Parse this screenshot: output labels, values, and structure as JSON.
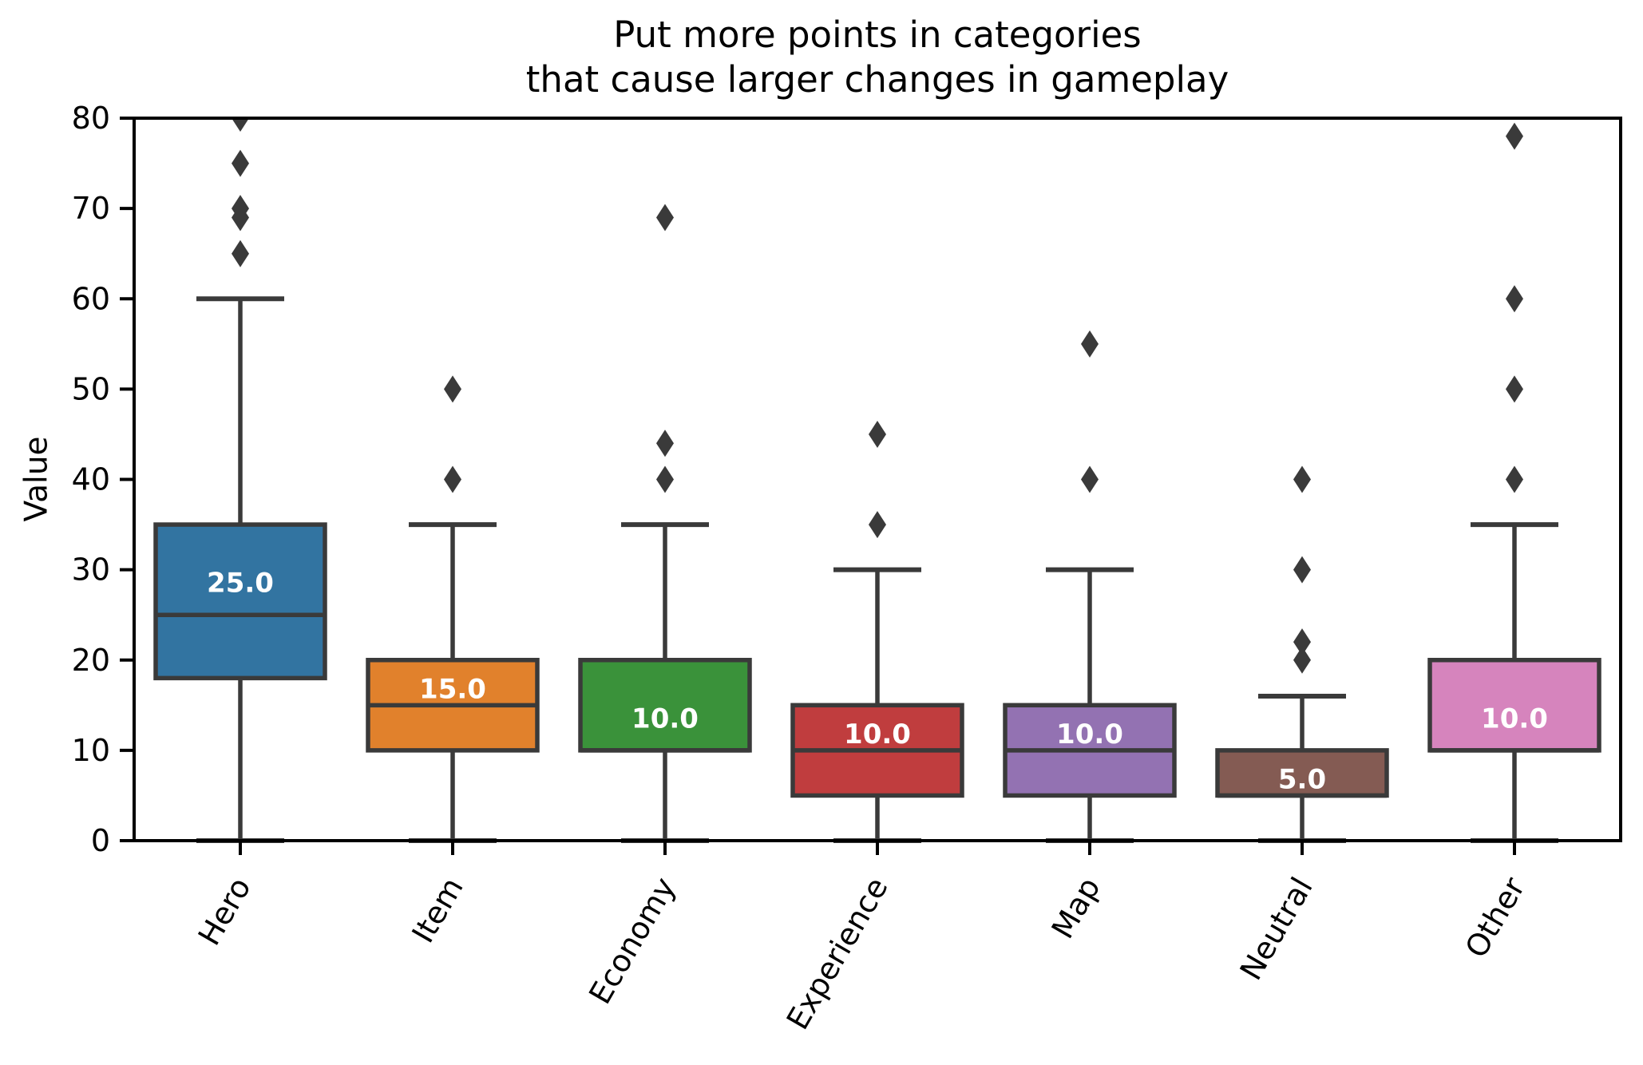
{
  "chart_data": {
    "type": "box",
    "title": "Put more points in categories\nthat cause larger changes in gameplay",
    "ylabel": "Value",
    "xlabel": "",
    "ylim": [
      0,
      80
    ],
    "yticks": [
      0,
      10,
      20,
      30,
      40,
      50,
      60,
      70,
      80
    ],
    "grid": false,
    "legend": "none",
    "x_tick_rotation_deg": 60,
    "categories": [
      "Hero",
      "Item",
      "Economy",
      "Experience",
      "Map",
      "Neutral",
      "Other"
    ],
    "series": [
      {
        "category": "Hero",
        "color": "#3274a1",
        "q1": 18,
        "median": 25,
        "q3": 35,
        "whisker_low": 0,
        "whisker_high": 60,
        "outliers": [
          65,
          69,
          70,
          75,
          80
        ],
        "median_label": "25.0"
      },
      {
        "category": "Item",
        "color": "#e1812c",
        "q1": 10,
        "median": 15,
        "q3": 20,
        "whisker_low": 0,
        "whisker_high": 35,
        "outliers": [
          40,
          50
        ],
        "median_label": "15.0"
      },
      {
        "category": "Economy",
        "color": "#3a923a",
        "q1": 10,
        "median": 10,
        "q3": 20,
        "whisker_low": 0,
        "whisker_high": 35,
        "outliers": [
          40,
          44,
          69
        ],
        "median_label": "10.0"
      },
      {
        "category": "Experience",
        "color": "#c03d3e",
        "q1": 5,
        "median": 10,
        "q3": 15,
        "whisker_low": 0,
        "whisker_high": 30,
        "outliers": [
          35,
          45
        ],
        "median_label": "10.0"
      },
      {
        "category": "Map",
        "color": "#9372b2",
        "q1": 5,
        "median": 10,
        "q3": 15,
        "whisker_low": 0,
        "whisker_high": 30,
        "outliers": [
          40,
          55
        ],
        "median_label": "10.0"
      },
      {
        "category": "Neutral",
        "color": "#845b53",
        "q1": 5,
        "median": 5,
        "q3": 10,
        "whisker_low": 0,
        "whisker_high": 16,
        "outliers": [
          20,
          22,
          30,
          40
        ],
        "median_label": "5.0"
      },
      {
        "category": "Other",
        "color": "#d684bd",
        "q1": 10,
        "median": 10,
        "q3": 20,
        "whisker_low": 0,
        "whisker_high": 35,
        "outliers": [
          40,
          50,
          60,
          78
        ],
        "median_label": "10.0"
      }
    ],
    "styles": {
      "box_line_color": "#3a3a3a",
      "outlier_color": "#3a3a3a",
      "axis_color": "#000000",
      "median_label_color": "#ffffff",
      "outlier_marker": "diamond"
    }
  }
}
